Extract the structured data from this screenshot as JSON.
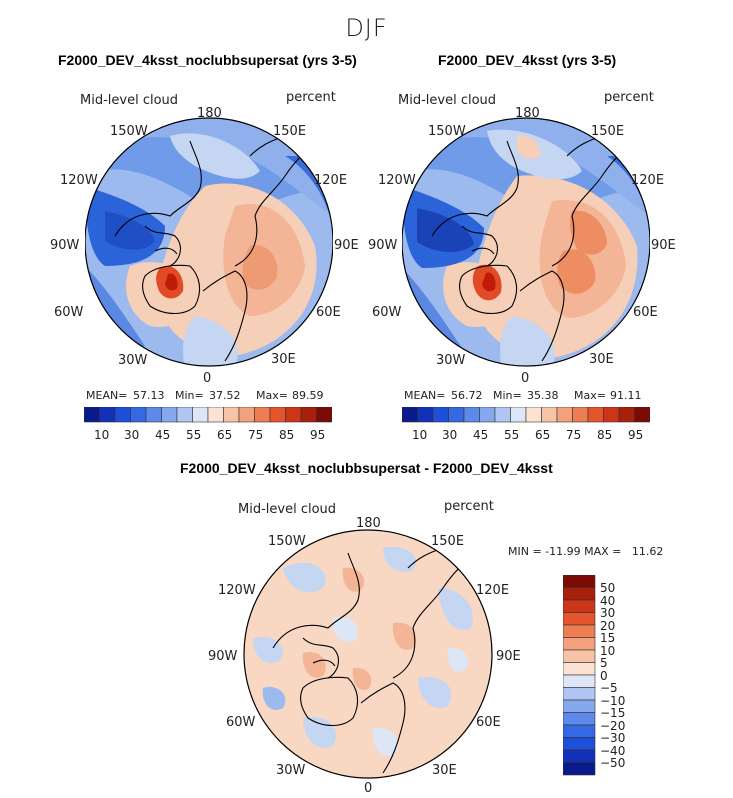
{
  "page_title": "DJF",
  "colors": {
    "ocean_blue": "#2b63d8",
    "mid_blue": "#6f9be8",
    "light_blue": "#c5d6f3",
    "near_white": "#eef0f4",
    "peach": "#f6cfb8",
    "orange": "#ef8a5a",
    "deep_red": "#c01a08",
    "coast": "#000000"
  },
  "panels": [
    {
      "title": "F2000_DEV_4ksst_noclubbsupersat (yrs 3-5)",
      "variable": "Mid-level cloud",
      "units": "percent",
      "lon_labels": [
        "180",
        "150E",
        "120E",
        "90E",
        "60E",
        "30E",
        "0",
        "30W",
        "60W",
        "90W",
        "120W",
        "150W"
      ],
      "stats": {
        "mean_label": "MEAN=",
        "mean": "57.13",
        "min_label": "Min=",
        "min": "37.52",
        "max_label": "Max=",
        "max": "89.59"
      }
    },
    {
      "title": "F2000_DEV_4ksst (yrs 3-5)",
      "variable": "Mid-level cloud",
      "units": "percent",
      "lon_labels": [
        "180",
        "150E",
        "120E",
        "90E",
        "60E",
        "30E",
        "0",
        "30W",
        "60W",
        "90W",
        "120W",
        "150W"
      ],
      "stats": {
        "mean_label": "MEAN=",
        "mean": "56.72",
        "min_label": "Min=",
        "min": "35.38",
        "max_label": "Max=",
        "max": "91.11"
      }
    },
    {
      "title": "F2000_DEV_4ksst_noclubbsupersat - F2000_DEV_4ksst",
      "variable": "Mid-level cloud",
      "units": "percent",
      "lon_labels": [
        "180",
        "150E",
        "120E",
        "90E",
        "60E",
        "30E",
        "0",
        "30W",
        "60W",
        "90W",
        "120W",
        "150W"
      ],
      "stats_text": "MIN = -11.99 MAX =   11.62"
    }
  ],
  "chart_data": [
    {
      "type": "heatmap",
      "projection": "north polar stereographic",
      "title": "F2000_DEV_4ksst_noclubbsupersat (yrs 3-5)",
      "season": "DJF",
      "variable": "Mid-level cloud",
      "units": "percent",
      "mean": 57.13,
      "min": 37.52,
      "max": 89.59,
      "colorbar_levels": [
        10,
        20,
        30,
        40,
        45,
        50,
        55,
        60,
        65,
        70,
        75,
        80,
        85,
        90,
        95
      ],
      "colorbar_tick_labels": [
        "10",
        "30",
        "45",
        "55",
        "65",
        "75",
        "85",
        "95"
      ]
    },
    {
      "type": "heatmap",
      "projection": "north polar stereographic",
      "title": "F2000_DEV_4ksst (yrs 3-5)",
      "season": "DJF",
      "variable": "Mid-level cloud",
      "units": "percent",
      "mean": 56.72,
      "min": 35.38,
      "max": 91.11,
      "colorbar_levels": [
        10,
        20,
        30,
        40,
        45,
        50,
        55,
        60,
        65,
        70,
        75,
        80,
        85,
        90,
        95
      ],
      "colorbar_tick_labels": [
        "10",
        "30",
        "45",
        "55",
        "65",
        "75",
        "85",
        "95"
      ]
    },
    {
      "type": "heatmap",
      "projection": "north polar stereographic",
      "title": "F2000_DEV_4ksst_noclubbsupersat - F2000_DEV_4ksst",
      "season": "DJF",
      "variable": "Mid-level cloud",
      "units": "percent",
      "min": -11.99,
      "max": 11.62,
      "colorbar_tick_labels": [
        "50",
        "40",
        "30",
        "20",
        "15",
        "10",
        "5",
        "0",
        "−5",
        "−10",
        "−15",
        "−20",
        "−30",
        "−40",
        "−50"
      ]
    }
  ]
}
